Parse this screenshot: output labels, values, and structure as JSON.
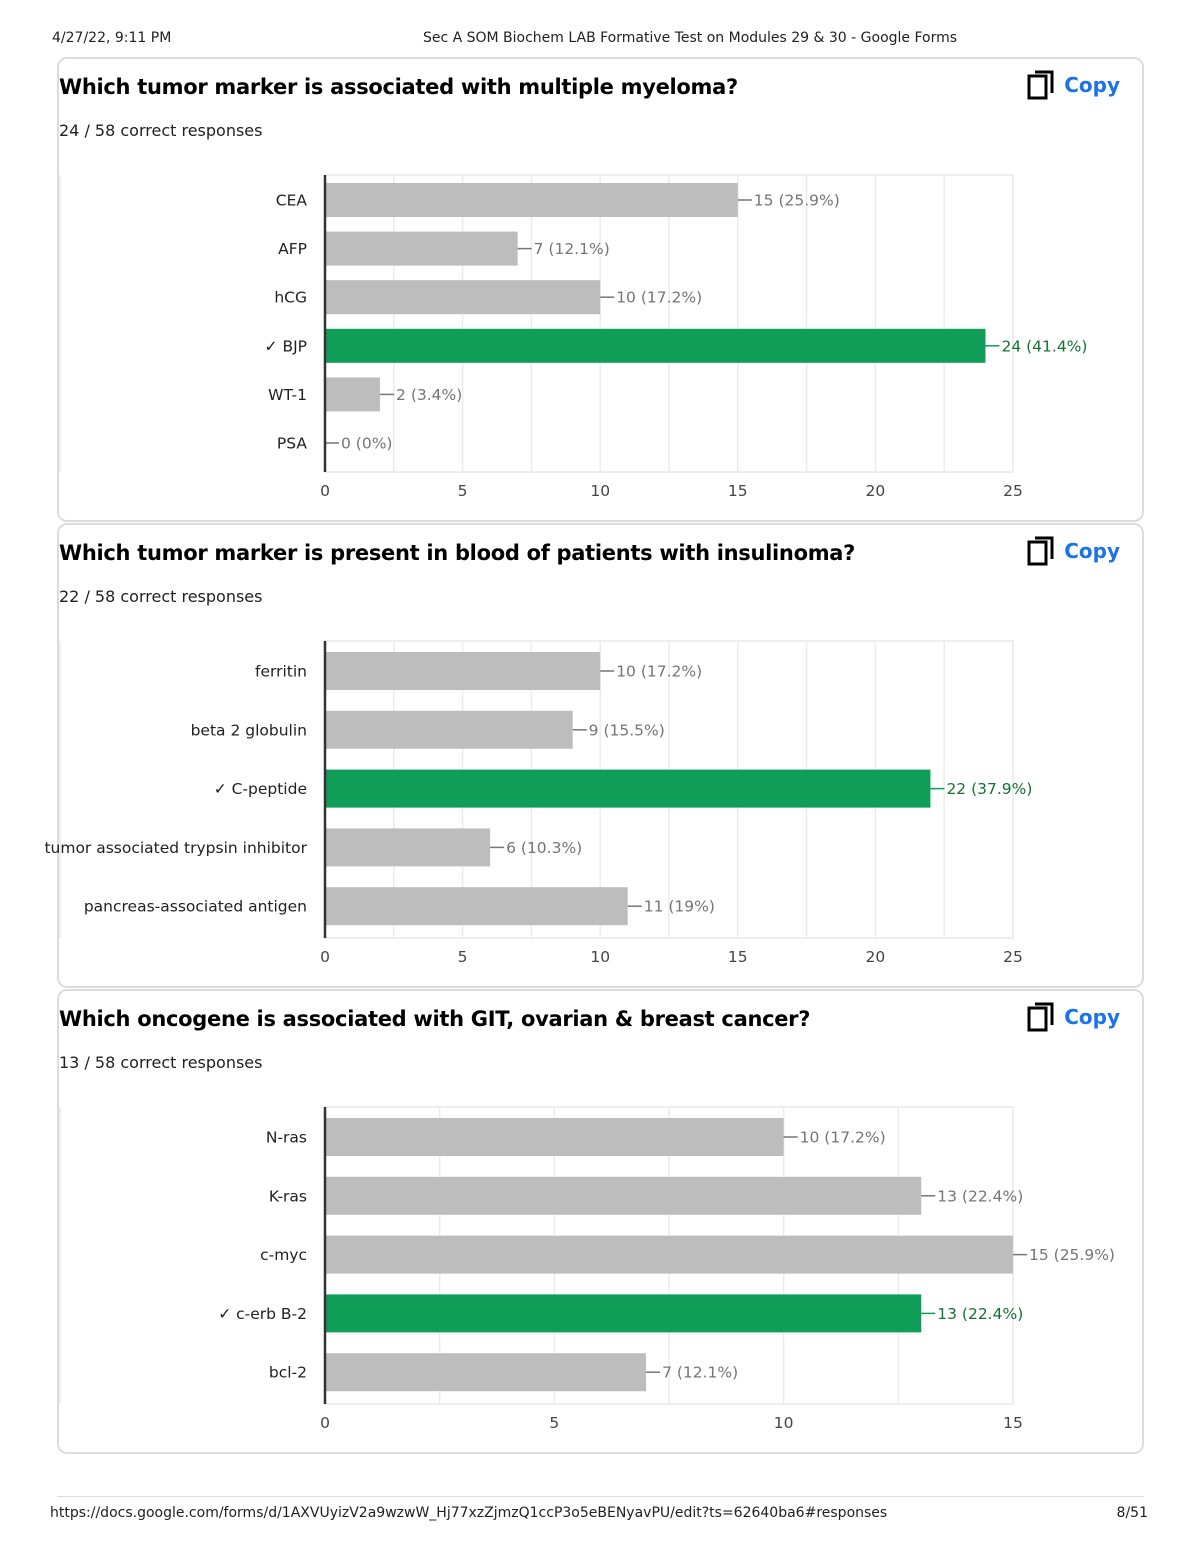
{
  "header": {
    "datetime": "4/27/22, 9:11 PM",
    "title": "Sec A SOM Biochem LAB Formative Test on Modules 29 & 30 - Google Forms"
  },
  "copy_label": "Copy",
  "chart_data": [
    {
      "type": "bar",
      "orientation": "horizontal",
      "title": "Which tumor marker is associated with multiple myeloma?",
      "subtitle": "24 / 58 correct responses",
      "categories": [
        "CEA",
        "AFP",
        "hCG",
        "✓ BJP",
        "WT-1",
        "PSA"
      ],
      "values": [
        15,
        7,
        10,
        24,
        2,
        0
      ],
      "data_labels": [
        "15 (25.9%)",
        "7 (12.1%)",
        "10 (17.2%)",
        "24 (41.4%)",
        "2 (3.4%)",
        "0 (0%)"
      ],
      "correct_index": 3,
      "xlim": [
        0,
        25
      ],
      "xticks": [
        0,
        5,
        10,
        15,
        20,
        25
      ],
      "grid": true,
      "colors": {
        "bar": "#bdbdbd",
        "correct": "#0f9d58",
        "label": "#757575",
        "correct_label": "#137333"
      }
    },
    {
      "type": "bar",
      "orientation": "horizontal",
      "title": "Which tumor marker is present in blood of patients with insulinoma?",
      "subtitle": "22 / 58 correct responses",
      "categories": [
        "ferritin",
        "beta 2 globulin",
        "✓ C-peptide",
        "tumor associated trypsin inhibitor",
        "pancreas-associated antigen"
      ],
      "values": [
        10,
        9,
        22,
        6,
        11
      ],
      "data_labels": [
        "10 (17.2%)",
        "9 (15.5%)",
        "22 (37.9%)",
        "6 (10.3%)",
        "11 (19%)"
      ],
      "correct_index": 2,
      "xlim": [
        0,
        25
      ],
      "xticks": [
        0,
        5,
        10,
        15,
        20,
        25
      ],
      "grid": true,
      "colors": {
        "bar": "#bdbdbd",
        "correct": "#0f9d58",
        "label": "#757575",
        "correct_label": "#137333"
      }
    },
    {
      "type": "bar",
      "orientation": "horizontal",
      "title": "Which oncogene is associated with GIT, ovarian & breast cancer?",
      "subtitle": "13 / 58 correct responses",
      "categories": [
        "N-ras",
        "K-ras",
        "c-myc",
        "✓ c-erb B-2",
        "bcl-2"
      ],
      "values": [
        10,
        13,
        15,
        13,
        7
      ],
      "data_labels": [
        "10 (17.2%)",
        "13 (22.4%)",
        "15 (25.9%)",
        "13 (22.4%)",
        "7 (12.1%)"
      ],
      "correct_index": 3,
      "xlim": [
        0,
        15
      ],
      "xticks": [
        0,
        5,
        10,
        15
      ],
      "grid": true,
      "colors": {
        "bar": "#bdbdbd",
        "correct": "#0f9d58",
        "label": "#757575",
        "correct_label": "#137333"
      }
    }
  ],
  "footer": {
    "url": "https://docs.google.com/forms/d/1AXVUyizV2a9wzwW_Hj77xzZjmzQ1ccP3o5eBENyavPU/edit?ts=62640ba6#responses",
    "page": "8/51"
  }
}
